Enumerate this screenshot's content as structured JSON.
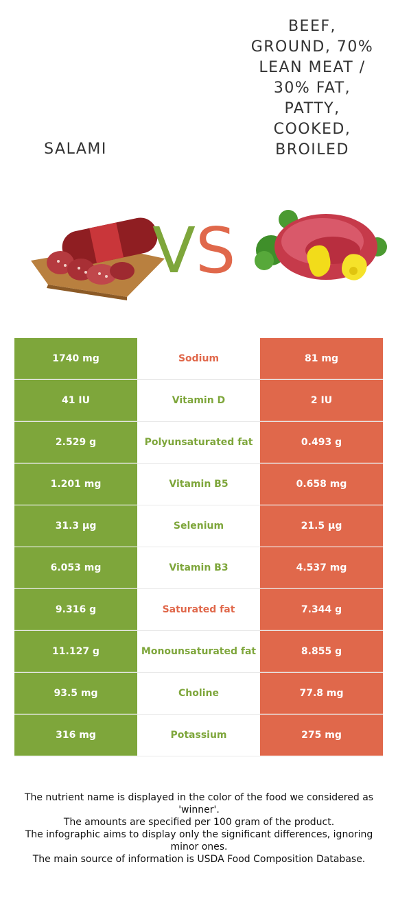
{
  "foods": {
    "left": {
      "title": "Salami",
      "color": "#7ea63b"
    },
    "right": {
      "title": "Beef, ground, 70% lean meat / 30% fat, patty, cooked, broiled",
      "color": "#e0684b"
    }
  },
  "vs": {
    "v": "V",
    "s": "S"
  },
  "rows": [
    {
      "left": "1740 mg",
      "nutrient": "Sodium",
      "right": "81 mg",
      "winner": "right"
    },
    {
      "left": "41 IU",
      "nutrient": "Vitamin D",
      "right": "2 IU",
      "winner": "left"
    },
    {
      "left": "2.529 g",
      "nutrient": "Polyunsaturated fat",
      "right": "0.493 g",
      "winner": "left"
    },
    {
      "left": "1.201 mg",
      "nutrient": "Vitamin B5",
      "right": "0.658 mg",
      "winner": "left"
    },
    {
      "left": "31.3 µg",
      "nutrient": "Selenium",
      "right": "21.5 µg",
      "winner": "left"
    },
    {
      "left": "6.053 mg",
      "nutrient": "Vitamin B3",
      "right": "4.537 mg",
      "winner": "left"
    },
    {
      "left": "9.316 g",
      "nutrient": "Saturated fat",
      "right": "7.344 g",
      "winner": "right"
    },
    {
      "left": "11.127 g",
      "nutrient": "Monounsaturated fat",
      "right": "8.855 g",
      "winner": "left"
    },
    {
      "left": "93.5 mg",
      "nutrient": "Choline",
      "right": "77.8 mg",
      "winner": "left"
    },
    {
      "left": "316 mg",
      "nutrient": "Potassium",
      "right": "275 mg",
      "winner": "left"
    }
  ],
  "footer": [
    "The nutrient name is displayed in the color of the food we considered as 'winner'.",
    "The amounts are specified per 100 gram of the product.",
    "The infographic aims to display only the significant differences, ignoring minor ones.",
    "The main source of information is USDA Food Composition Database."
  ]
}
